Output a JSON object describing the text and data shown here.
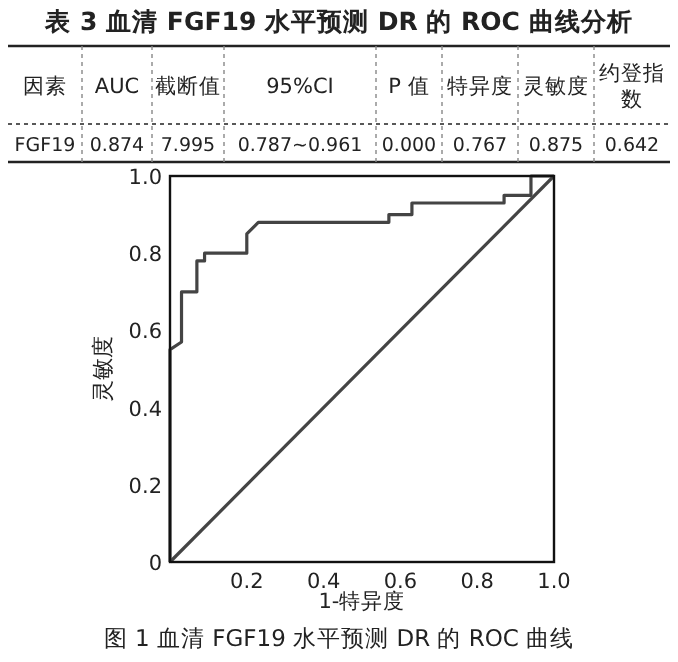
{
  "chart_data": {
    "type": "line",
    "title": "图 1  血清 FGF19 水平预测 DR 的 ROC 曲线",
    "xlabel": "1-特异度",
    "ylabel": "灵敏度",
    "annotations": [
      "表 3  血清 FGF19 水平预测 DR 的 ROC 曲线分析",
      "因素",
      "AUC",
      "截断值",
      "95%CI",
      "P 值",
      "特异度",
      "灵敏度",
      "约登指数",
      "FGF19",
      "0.874",
      "7.995",
      "0.787~0.961",
      "0.000",
      "0.767",
      "0.875",
      "0.642"
    ],
    "series": [
      {
        "color": "#444444",
        "x": [
          0,
          0,
          0.03,
          0.03,
          0.07,
          0.07,
          0.09,
          0.09,
          0.2,
          0.2,
          0.23,
          0.57,
          0.57,
          0.63,
          0.63,
          0.87,
          0.87,
          0.94,
          0.94,
          1
        ],
        "values": [
          0,
          0.55,
          0.57,
          0.7,
          0.7,
          0.78,
          0.78,
          0.8,
          0.8,
          0.85,
          0.88,
          0.88,
          0.9,
          0.9,
          0.93,
          0.93,
          0.95,
          0.95,
          1,
          1
        ]
      },
      {
        "color": "#444444",
        "x": [
          0,
          1
        ],
        "values": [
          0,
          1
        ]
      }
    ],
    "xlim": [
      0,
      1
    ],
    "ylim": [
      0,
      1
    ],
    "xticks": [
      0.2,
      0.4,
      0.6,
      0.8,
      {
        "value": 1,
        "label": "1.0"
      }
    ],
    "yticks": [
      {
        "value": 0,
        "label": "0"
      },
      0.2,
      0.4,
      0.6,
      0.8,
      {
        "value": 1,
        "label": "1.0"
      }
    ]
  }
}
